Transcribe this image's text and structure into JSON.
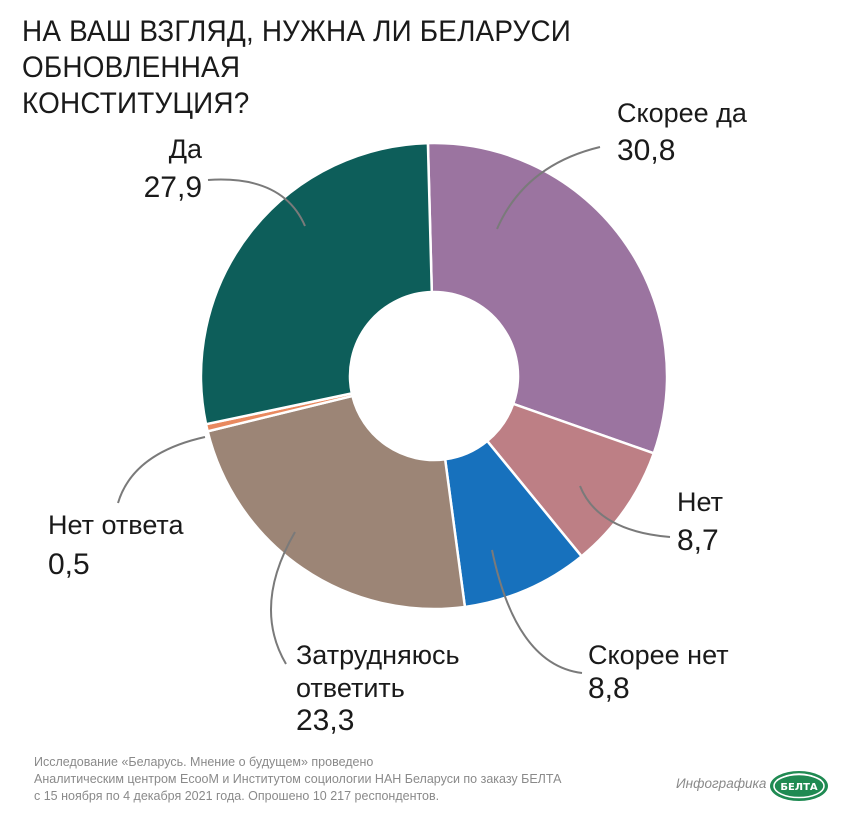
{
  "title_lines": [
    "НА ВАШ ВЗГЛЯД, НУЖНА ЛИ БЕЛАРУСИ ОБНОВЛЕННАЯ",
    "КОНСТИТУЦИЯ?"
  ],
  "chart_data": {
    "type": "pie",
    "title": "НА ВАШ ВЗГЛЯД, НУЖНА ЛИ БЕЛАРУСИ ОБНОВЛЕННАЯ КОНСТИТУЦИЯ?",
    "donut": true,
    "slices": [
      {
        "label": "Скорее да",
        "label_lines": [
          "Скорее да"
        ],
        "value": 30.8,
        "value_text": "30,8",
        "color": "#9b74a0"
      },
      {
        "label": "Нет",
        "label_lines": [
          "Нет"
        ],
        "value": 8.7,
        "value_text": "8,7",
        "color": "#bd7f85"
      },
      {
        "label": "Скорее нет",
        "label_lines": [
          "Скорее нет"
        ],
        "value": 8.8,
        "value_text": "8,8",
        "color": "#1771bd"
      },
      {
        "label": "Затрудняюсь ответить",
        "label_lines": [
          "Затрудняюсь",
          "ответить"
        ],
        "value": 23.3,
        "value_text": "23,3",
        "color": "#9c8576"
      },
      {
        "label": "Нет ответа",
        "label_lines": [
          "Нет ответа"
        ],
        "value": 0.5,
        "value_text": "0,5",
        "color": "#e9895f"
      },
      {
        "label": "Да",
        "label_lines": [
          "Да"
        ],
        "value": 27.9,
        "value_text": "27,9",
        "color": "#0d5e5a"
      }
    ]
  },
  "source_lines": [
    "Исследование «Беларусь. Мнение о будущем» проведено",
    "Аналитическим центром EcooM и Институтом социологии НАН Беларуси по заказу БЕЛТА",
    "с 15 ноября по 4 декабря 2021 года. Опрошено 10 217 респондентов."
  ],
  "brand": {
    "label": "Инфографика",
    "logo_text": "БЕЛТА"
  }
}
